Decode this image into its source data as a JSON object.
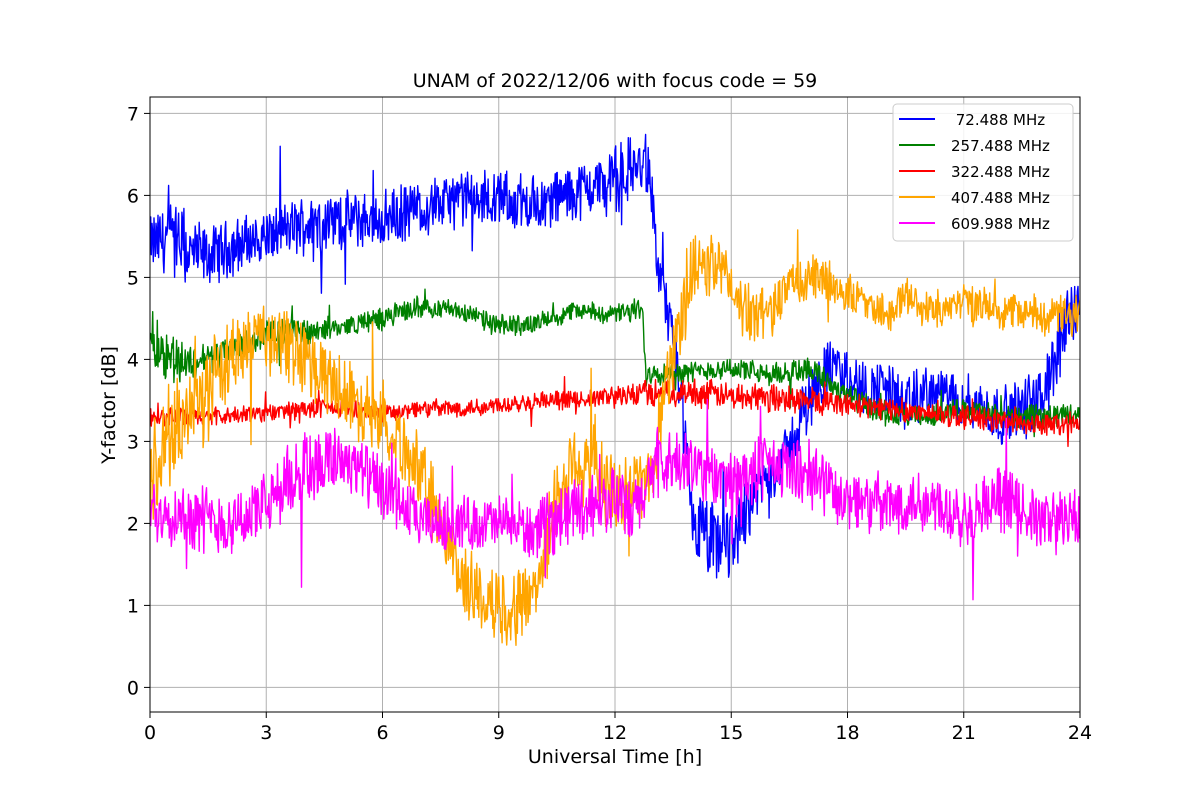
{
  "chart_data": {
    "type": "line",
    "title": "UNAM of 2022/12/06 with focus code = 59",
    "xlabel": "Universal Time [h]",
    "ylabel": "Y-factor [dB]",
    "xlim": [
      0,
      24
    ],
    "ylim": [
      -0.3,
      7.2
    ],
    "xticks": [
      0,
      3,
      6,
      9,
      12,
      15,
      18,
      21,
      24
    ],
    "yticks": [
      0,
      1,
      2,
      3,
      4,
      5,
      6,
      7
    ],
    "grid": true,
    "legend_position": "top-right",
    "series": [
      {
        "name": " 72.488 MHz",
        "color": "#0000ff",
        "x": [
          0,
          0.5,
          1,
          1.5,
          2,
          3,
          4,
          5,
          6,
          7,
          8,
          9,
          10,
          11,
          12,
          12.5,
          12.9,
          13.1,
          13.5,
          14,
          14.5,
          15,
          15.5,
          16,
          16.5,
          17,
          17.5,
          18,
          18.5,
          19,
          19.5,
          20,
          21,
          22,
          23,
          23.5,
          24
        ],
        "values": [
          5.4,
          5.5,
          5.3,
          5.25,
          5.35,
          5.5,
          5.65,
          5.7,
          5.7,
          5.85,
          5.95,
          5.95,
          5.9,
          6.05,
          6.2,
          6.35,
          6.3,
          5.1,
          4.3,
          2.0,
          1.7,
          1.8,
          2.3,
          2.6,
          2.9,
          3.5,
          3.9,
          3.8,
          3.6,
          3.7,
          3.4,
          3.6,
          3.5,
          3.3,
          3.5,
          4.2,
          4.8
        ],
        "spread": [
          0.3,
          0.4,
          0.4,
          0.3,
          0.3,
          0.3,
          0.3,
          0.3,
          0.3,
          0.3,
          0.3,
          0.3,
          0.3,
          0.3,
          0.35,
          0.35,
          0.3,
          0.3,
          0.3,
          0.4,
          0.5,
          0.45,
          0.35,
          0.3,
          0.3,
          0.35,
          0.3,
          0.3,
          0.3,
          0.3,
          0.3,
          0.3,
          0.3,
          0.3,
          0.35,
          0.4,
          0.4
        ]
      },
      {
        "name": "257.488 MHz",
        "color": "#008000",
        "x": [
          0,
          0.3,
          1,
          2,
          3,
          4,
          5,
          6,
          7,
          8,
          9,
          10,
          11,
          12,
          12.7,
          12.8,
          14,
          15,
          16,
          17,
          18,
          19,
          20,
          21,
          22,
          23,
          24
        ],
        "values": [
          4.3,
          4.1,
          3.95,
          4.1,
          4.3,
          4.35,
          4.4,
          4.5,
          4.65,
          4.6,
          4.4,
          4.45,
          4.6,
          4.55,
          4.6,
          3.85,
          3.85,
          3.9,
          3.8,
          3.9,
          3.55,
          3.3,
          3.3,
          3.4,
          3.3,
          3.3,
          3.35
        ],
        "spread": [
          0.3,
          0.3,
          0.2,
          0.15,
          0.15,
          0.15,
          0.1,
          0.12,
          0.12,
          0.1,
          0.12,
          0.1,
          0.1,
          0.1,
          0.15,
          0.15,
          0.1,
          0.12,
          0.12,
          0.15,
          0.15,
          0.12,
          0.12,
          0.12,
          0.12,
          0.12,
          0.12
        ]
      },
      {
        "name": "322.488 MHz",
        "color": "#ff0000",
        "x": [
          0,
          1,
          2,
          3,
          4,
          5,
          6,
          7,
          8,
          9,
          10,
          11,
          12,
          13,
          14,
          15,
          16,
          17,
          18,
          19,
          20,
          21,
          22,
          23,
          24
        ],
        "values": [
          3.3,
          3.3,
          3.3,
          3.35,
          3.4,
          3.4,
          3.35,
          3.4,
          3.4,
          3.45,
          3.5,
          3.5,
          3.55,
          3.6,
          3.6,
          3.55,
          3.55,
          3.5,
          3.45,
          3.4,
          3.35,
          3.3,
          3.25,
          3.2,
          3.2
        ],
        "spread": [
          0.1,
          0.1,
          0.1,
          0.1,
          0.1,
          0.1,
          0.1,
          0.1,
          0.1,
          0.1,
          0.1,
          0.1,
          0.12,
          0.15,
          0.15,
          0.15,
          0.15,
          0.15,
          0.12,
          0.12,
          0.12,
          0.12,
          0.12,
          0.12,
          0.12
        ]
      },
      {
        "name": "407.488 MHz",
        "color": "#ffa500",
        "x": [
          0,
          0.5,
          1,
          1.5,
          2,
          3,
          4,
          5,
          6,
          7,
          7.5,
          8,
          8.5,
          9,
          9.5,
          10,
          10.5,
          11,
          11.5,
          12,
          12.5,
          12.9,
          13.5,
          14,
          14.5,
          15,
          15.5,
          16,
          16.5,
          17,
          17.5,
          18,
          18.5,
          19,
          19.5,
          20,
          21,
          22,
          23,
          24
        ],
        "values": [
          2.5,
          3.0,
          3.4,
          3.6,
          4.0,
          4.3,
          4.0,
          3.6,
          3.3,
          2.6,
          2.0,
          1.4,
          1.1,
          1.0,
          1.0,
          1.3,
          2.3,
          2.8,
          2.7,
          2.3,
          2.5,
          2.5,
          4.2,
          5.0,
          5.2,
          4.9,
          4.5,
          4.6,
          4.9,
          5.0,
          4.95,
          4.8,
          4.7,
          4.55,
          4.8,
          4.6,
          4.7,
          4.6,
          4.55,
          4.5
        ],
        "spread": [
          0.6,
          0.5,
          0.5,
          0.5,
          0.4,
          0.4,
          0.4,
          0.4,
          0.4,
          0.4,
          0.4,
          0.4,
          0.4,
          0.4,
          0.4,
          0.4,
          0.5,
          0.5,
          0.5,
          0.4,
          0.4,
          0.4,
          0.5,
          0.4,
          0.35,
          0.35,
          0.3,
          0.3,
          0.25,
          0.25,
          0.25,
          0.2,
          0.2,
          0.2,
          0.2,
          0.2,
          0.2,
          0.2,
          0.2,
          0.25
        ]
      },
      {
        "name": "609.988 MHz",
        "color": "#ff00ff",
        "x": [
          0,
          1,
          2,
          3,
          4,
          5,
          6,
          7,
          8,
          9,
          10,
          11,
          12,
          12.5,
          13,
          14,
          15,
          16,
          17,
          18,
          19,
          20,
          21,
          22,
          23,
          24
        ],
        "values": [
          2.2,
          2.1,
          2.0,
          2.2,
          2.7,
          2.8,
          2.4,
          2.0,
          2.0,
          2.0,
          1.9,
          2.2,
          2.3,
          2.1,
          2.7,
          2.7,
          2.5,
          2.7,
          2.6,
          2.3,
          2.2,
          2.3,
          2.1,
          2.3,
          2.0,
          2.1
        ],
        "spread": [
          0.35,
          0.35,
          0.35,
          0.35,
          0.45,
          0.4,
          0.35,
          0.3,
          0.3,
          0.3,
          0.3,
          0.35,
          0.35,
          0.35,
          0.4,
          0.35,
          0.35,
          0.35,
          0.35,
          0.35,
          0.35,
          0.35,
          0.35,
          0.35,
          0.35,
          0.35
        ]
      }
    ]
  }
}
